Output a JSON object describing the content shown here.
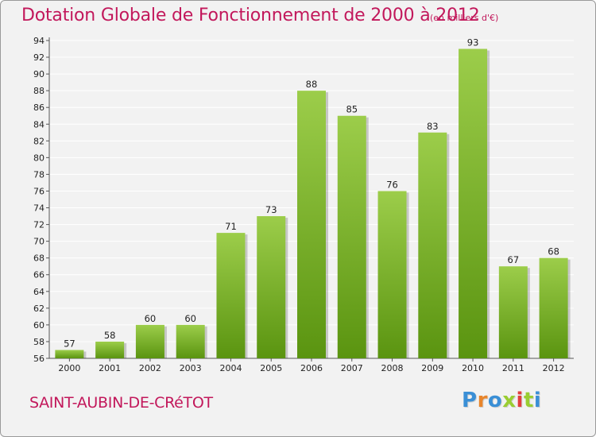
{
  "header": {
    "title": "Dotation Globale de Fonctionnement de 2000 à 2012",
    "subtitle": "(en milliers d'€)"
  },
  "footer": {
    "commune": "SAINT-AUBIN-DE-CRéTOT",
    "brand": "Proxiti"
  },
  "colors": {
    "title": "#c2185b",
    "bar_top": "#9ccd4a",
    "bar_bottom": "#5a9410",
    "grid": "#ffffff",
    "background": "#f2f2f2",
    "brand_letters": [
      "#3a8fd6",
      "#e8852b",
      "#3a8fd6",
      "#9acd32",
      "#e23d3d",
      "#9acd32",
      "#3a8fd6"
    ]
  },
  "chart_data": {
    "type": "bar",
    "title": "Dotation Globale de Fonctionnement de 2000 à 2012",
    "subtitle": "(en milliers d'€)",
    "categories": [
      "2000",
      "2001",
      "2002",
      "2003",
      "2004",
      "2005",
      "2006",
      "2007",
      "2008",
      "2009",
      "2010",
      "2011",
      "2012"
    ],
    "values": [
      57,
      58,
      60,
      60,
      71,
      73,
      88,
      85,
      76,
      83,
      93,
      67,
      68
    ],
    "ylim": [
      56,
      94
    ],
    "yticks": [
      56,
      58,
      60,
      62,
      64,
      66,
      68,
      70,
      72,
      74,
      76,
      78,
      80,
      82,
      84,
      86,
      88,
      90,
      92,
      94
    ],
    "grid": true,
    "legend": "none",
    "data_labels": true
  }
}
